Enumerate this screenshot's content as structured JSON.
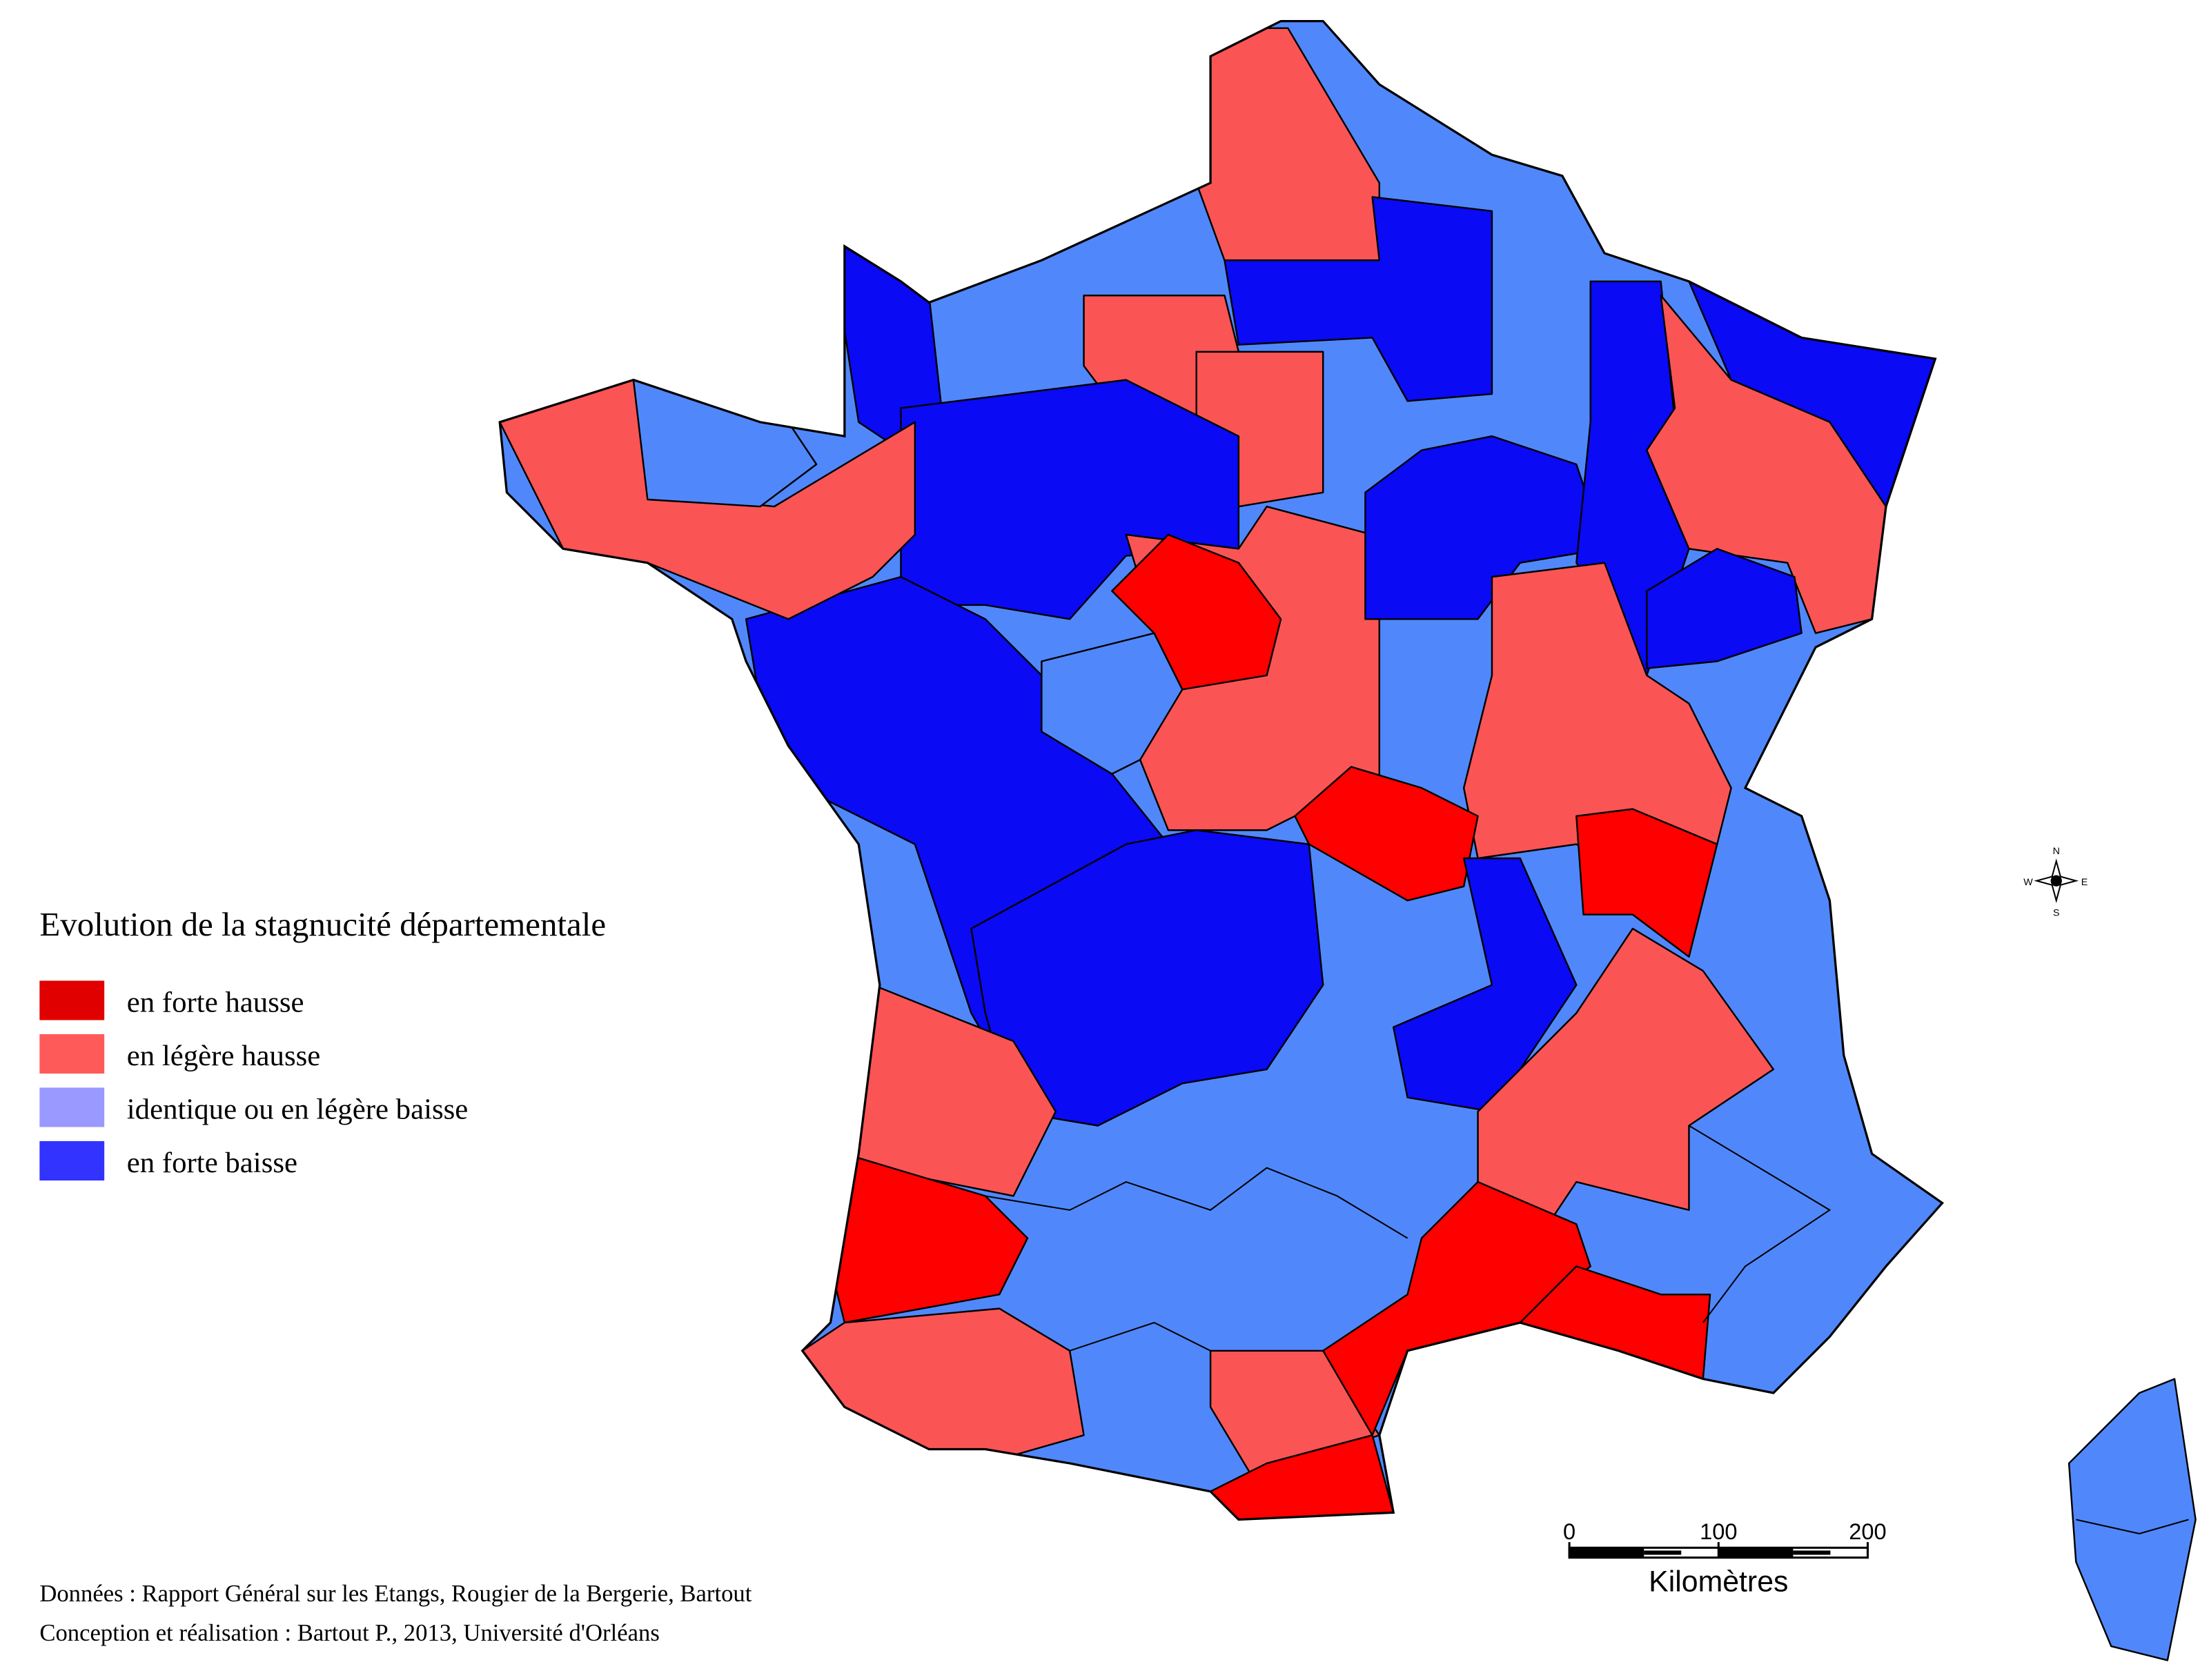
{
  "legend": {
    "title": "Evolution de la stagnucité départementale",
    "items": [
      {
        "label": "en forte hausse",
        "color": "#e00000"
      },
      {
        "label": "en légère hausse",
        "color": "#ff5a5a"
      },
      {
        "label": "identique ou en légère baisse",
        "color": "#9999ff"
      },
      {
        "label": "en forte baisse",
        "color": "#3333ff"
      }
    ]
  },
  "sources": [
    "Données : Rapport Général sur les Etangs, Rougier de la Bergerie, Bartout",
    "Conception et réalisation : Bartout P., 2013, Université d'Orléans"
  ],
  "scale": {
    "ticks": [
      0,
      100,
      200
    ],
    "unit": "Kilomètres"
  },
  "compass": {
    "n": "N",
    "s": "S",
    "e": "E",
    "w": "W"
  }
}
